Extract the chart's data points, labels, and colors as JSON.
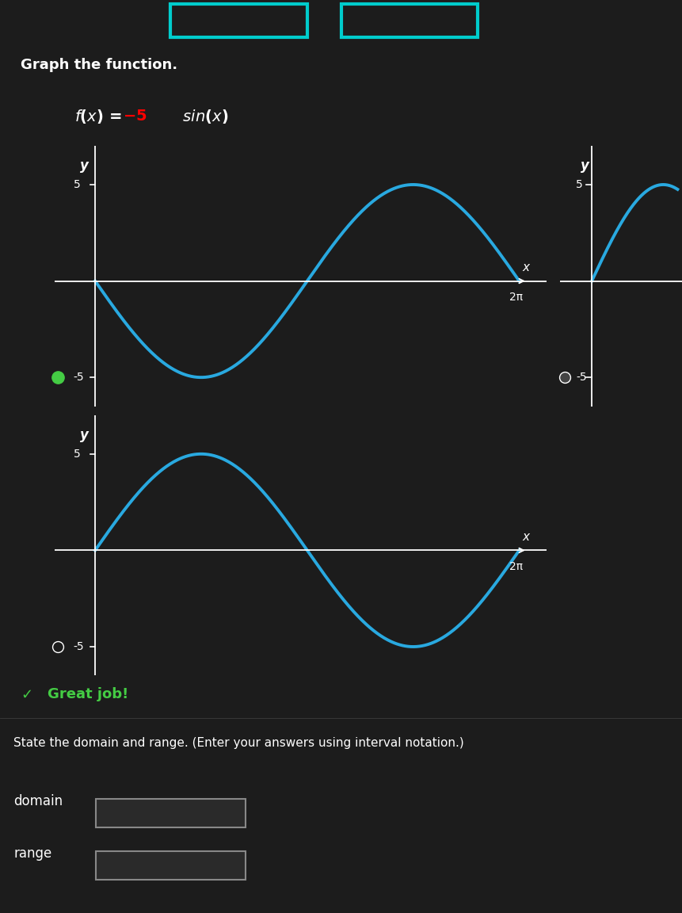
{
  "bg_color": "#1c1c1c",
  "dark_bg": "#0a0a0a",
  "curve_color": "#29a9e0",
  "axis_color": "#ffffff",
  "text_color": "#ffffff",
  "title_text": "Graph the function.",
  "amplitude": -5,
  "x_tick_val": 6.2832,
  "domain_label": "domain",
  "range_label": "range",
  "great_job_text": "Great job!",
  "great_job_color": "#44cc44",
  "state_domain_text": "State the domain and range. (Enter your answers using interval notation.)",
  "curve_linewidth": 2.8,
  "top_bar_color": "#00cccc"
}
